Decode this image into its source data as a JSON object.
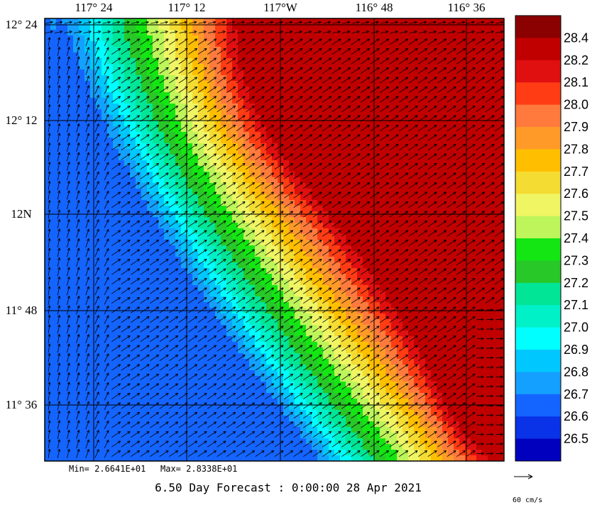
{
  "map": {
    "longitude_labels": [
      "117° 24",
      "117° 12",
      "117°W",
      "116° 48",
      "116° 36"
    ],
    "latitude_labels": [
      "12° 24",
      "12° 12",
      "12N",
      "11° 48",
      "11° 36"
    ],
    "min_label": "Min= 2.6641E+01",
    "max_label": "Max= 2.8338E+01",
    "forecast_label": "6.50 Day Forecast :  0:00:00  28 Apr 2021",
    "vector_scale_label": "60 cm/s",
    "field_min": 26.641,
    "field_max": 28.338
  },
  "legend": {
    "levels": [
      "28.4",
      "28.2",
      "28.1",
      "28.0",
      "27.9",
      "27.8",
      "27.7",
      "27.6",
      "27.5",
      "27.4",
      "27.3",
      "27.2",
      "27.1",
      "27.0",
      "26.9",
      "26.8",
      "26.7",
      "26.6",
      "26.5"
    ],
    "colors": [
      "#8b0000",
      "#c00000",
      "#e01010",
      "#ff3c14",
      "#ff7a3c",
      "#ff9a28",
      "#ffbf00",
      "#f5dc32",
      "#f0f564",
      "#bdf55a",
      "#14e614",
      "#28c828",
      "#00e696",
      "#00f0c8",
      "#00ffff",
      "#00c8ff",
      "#14a0ff",
      "#1464ff",
      "#0a32e6",
      "#0000be"
    ]
  }
}
